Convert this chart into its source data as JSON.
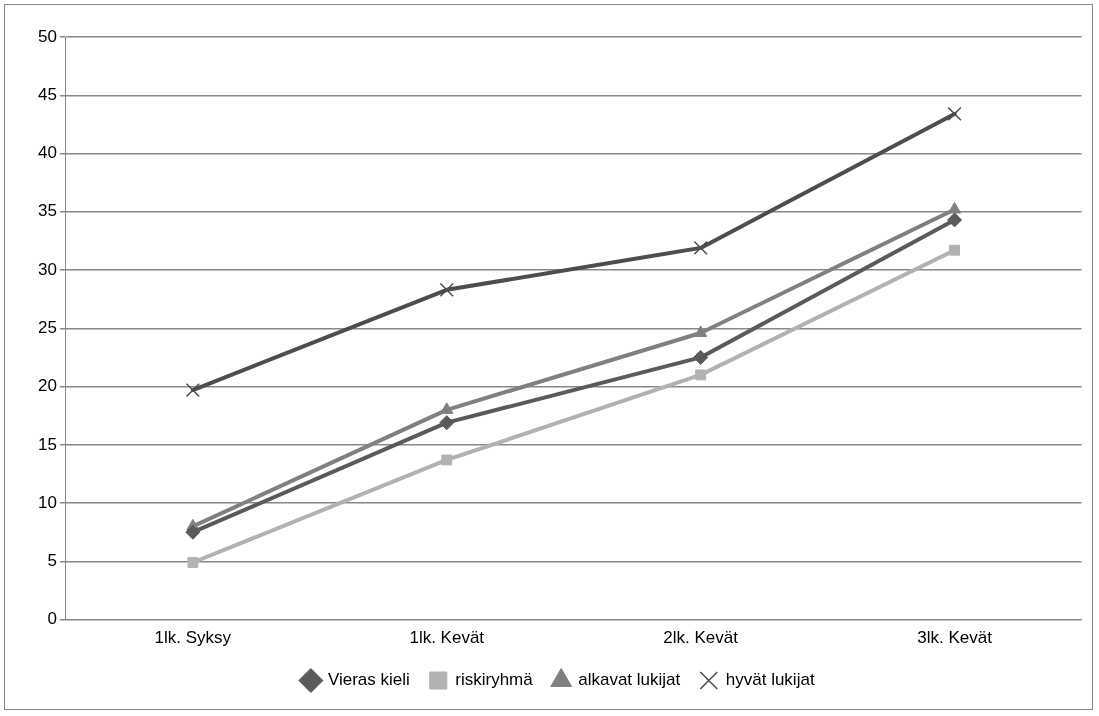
{
  "chart_data": {
    "type": "line",
    "categories": [
      "1lk. Syksy",
      "1lk. Kevät",
      "2lk. Kevät",
      "3lk. Kevät"
    ],
    "series": [
      {
        "name": "Vieras kieli",
        "color": "#5a5a5a",
        "marker": "diamond",
        "values": [
          7.5,
          16.9,
          22.5,
          34.3
        ]
      },
      {
        "name": "riskiryhmä",
        "color": "#b2b2b2",
        "marker": "square",
        "values": [
          4.9,
          13.7,
          21,
          31.7
        ]
      },
      {
        "name": "alkavat lukijat",
        "color": "#808080",
        "marker": "triangle",
        "values": [
          8,
          18,
          24.6,
          35.2
        ]
      },
      {
        "name": "hyvät lukijat",
        "color": "#4d4d4d",
        "marker": "cross",
        "values": [
          19.7,
          28.3,
          31.9,
          43.4
        ]
      }
    ],
    "ylim": [
      0,
      50
    ],
    "yticks": [
      0,
      5,
      10,
      15,
      20,
      25,
      30,
      35,
      40,
      45,
      50
    ],
    "grid": "y",
    "legend": "bottom",
    "line_style": "solid"
  }
}
